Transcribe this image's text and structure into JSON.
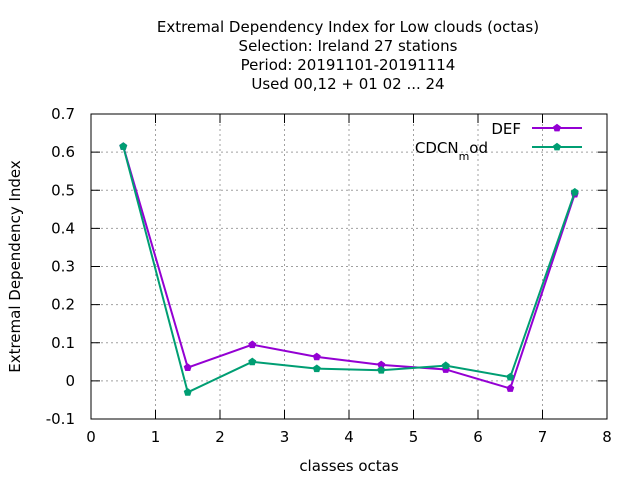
{
  "chart_data": {
    "type": "line",
    "title_lines": [
      "Extremal Dependency Index  for Low clouds (octas)",
      "Selection: Ireland      27 stations",
      "Period: 20191101-20191114",
      "Used  00,12  + 01 02 ... 24"
    ],
    "xlabel": "classes octas",
    "ylabel": "Extremal Dependency Index",
    "xlim": [
      0,
      8
    ],
    "ylim": [
      -0.1,
      0.7
    ],
    "xticks": [
      "0",
      "1",
      "2",
      "3",
      "4",
      "5",
      "6",
      "7",
      "8"
    ],
    "yticks": [
      "-0.1",
      "0",
      "0.1",
      "0.2",
      "0.3",
      "0.4",
      "0.5",
      "0.6",
      "0.7"
    ],
    "grid": true,
    "legend_position": "top-right",
    "x": [
      0.5,
      1.5,
      2.5,
      3.5,
      4.5,
      5.5,
      6.5,
      7.5
    ],
    "series": [
      {
        "name": "DEF",
        "color": "#9400d3",
        "values": [
          0.615,
          0.035,
          0.095,
          0.063,
          0.042,
          0.03,
          -0.02,
          0.49
        ]
      },
      {
        "name": "CDCN_mod",
        "legend_main": "CDCN",
        "legend_sub": "m",
        "legend_tail": "od",
        "color": "#009e73",
        "values": [
          0.615,
          -0.03,
          0.05,
          0.032,
          0.028,
          0.04,
          0.01,
          0.495
        ]
      }
    ]
  }
}
